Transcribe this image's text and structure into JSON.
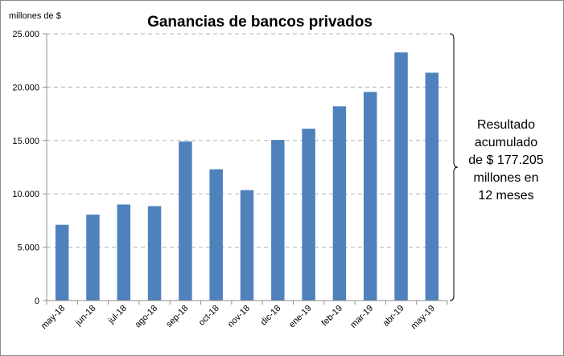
{
  "chart_data": {
    "type": "bar",
    "title": "Ganancias de bancos privados",
    "ylabel": "millones de $",
    "xlabel": "",
    "categories": [
      "may-18",
      "jun-18",
      "jul-18",
      "ago-18",
      "sep-18",
      "oct-18",
      "nov-18",
      "dic-18",
      "ene-19",
      "feb-19",
      "mar-19",
      "abr-19",
      "may-19"
    ],
    "values": [
      7100,
      8050,
      9000,
      8850,
      14900,
      12300,
      10350,
      15050,
      16100,
      18200,
      19550,
      23250,
      21350
    ],
    "ylim": [
      0,
      25000
    ],
    "yticks": [
      0,
      5000,
      10000,
      15000,
      20000,
      25000
    ],
    "ytick_labels": [
      "0",
      "5.000",
      "10.000",
      "15.000",
      "20.000",
      "25.000"
    ],
    "grid": true,
    "bar_color": "#4f81bd",
    "annotation": {
      "lines": [
        "Resultado",
        "acumulado",
        "de  $ 177.205",
        "millones en",
        "12 meses"
      ]
    }
  }
}
